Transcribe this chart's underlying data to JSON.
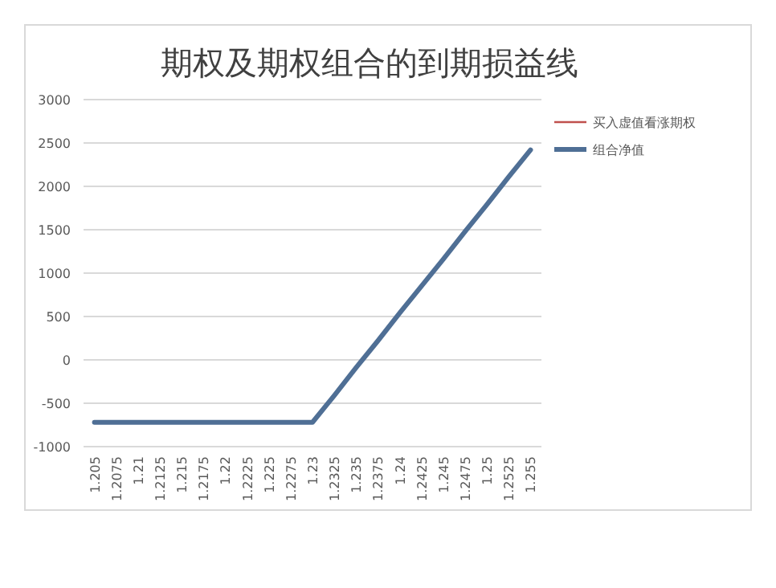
{
  "chart_data": {
    "type": "line",
    "title": "期权及期权组合的到期损益线",
    "categories": [
      "1.205",
      "1.2075",
      "1.21",
      "1.2125",
      "1.215",
      "1.2175",
      "1.22",
      "1.2225",
      "1.225",
      "1.2275",
      "1.23",
      "1.2325",
      "1.235",
      "1.2375",
      "1.24",
      "1.2425",
      "1.245",
      "1.2475",
      "1.25",
      "1.2525",
      "1.255"
    ],
    "series": [
      {
        "name": "买入虚值看涨期权",
        "color": "#c0504d",
        "values": [
          null,
          null,
          null,
          null,
          null,
          null,
          null,
          null,
          null,
          null,
          null,
          null,
          null,
          null,
          null,
          null,
          null,
          null,
          null,
          null,
          null
        ]
      },
      {
        "name": "组合净值",
        "color": "#4f6f95",
        "values": [
          -720,
          -720,
          -720,
          -720,
          -720,
          -720,
          -720,
          -720,
          -720,
          -720,
          -720,
          -410,
          -90,
          220,
          540,
          850,
          1160,
          1480,
          1790,
          2110,
          2420
        ]
      }
    ],
    "ylim": [
      -1000,
      3000
    ],
    "yticks": [
      -1000,
      -500,
      0,
      500,
      1000,
      1500,
      2000,
      2500,
      3000
    ],
    "grid": "y",
    "legend": "right",
    "marker": "none",
    "line_style": "solid"
  }
}
